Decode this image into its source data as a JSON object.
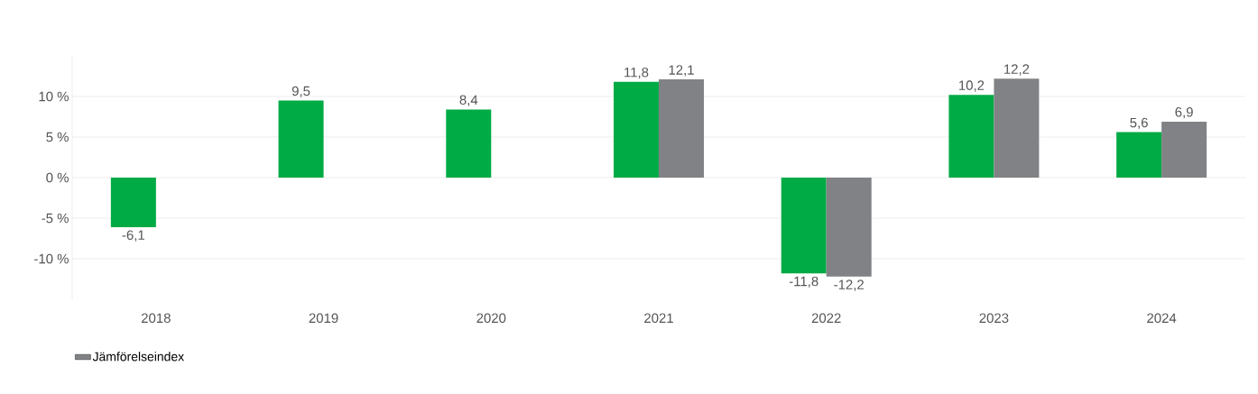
{
  "chart_data": {
    "type": "bar",
    "categories": [
      "2018",
      "2019",
      "2020",
      "2021",
      "2022",
      "2023",
      "2024"
    ],
    "series": [
      {
        "color": "#00ab45",
        "values": [
          -6.1,
          9.5,
          8.4,
          11.8,
          -11.8,
          10.2,
          5.6
        ],
        "value_labels": [
          "-6,1",
          "9,5",
          "8,4",
          "11,8",
          "-11,8",
          "10,2",
          "5,6"
        ]
      },
      {
        "name": "Jämförelseindex",
        "color": "#808285",
        "values": [
          null,
          null,
          null,
          12.1,
          -12.2,
          12.2,
          6.9
        ],
        "value_labels": [
          null,
          null,
          null,
          "12,1",
          "-12,2",
          "12,2",
          "6,9"
        ]
      }
    ],
    "yticks": [
      {
        "value": -10,
        "label": "-10 %"
      },
      {
        "value": -5,
        "label": "-5 %"
      },
      {
        "value": 0,
        "label": "0 %"
      },
      {
        "value": 5,
        "label": "5 %"
      },
      {
        "value": 10,
        "label": "10 %"
      }
    ],
    "ylim": [
      -15,
      15
    ],
    "grid": "y",
    "legend": "bottom left"
  }
}
